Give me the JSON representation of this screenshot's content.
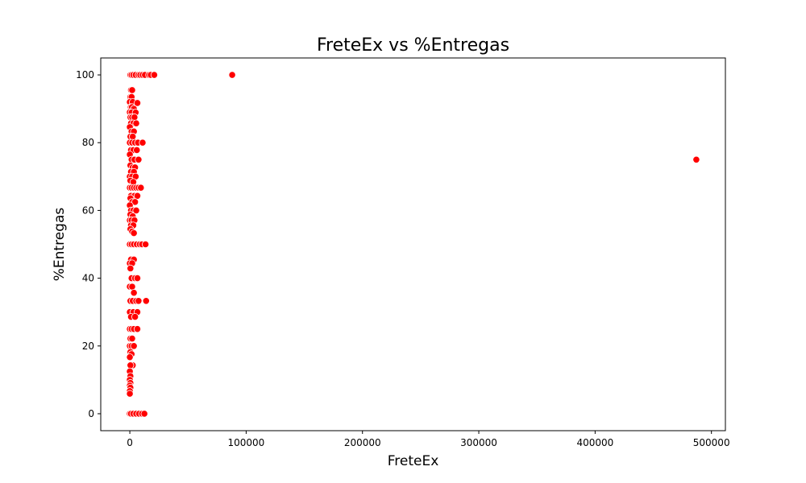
{
  "chart_data": {
    "type": "scatter",
    "title": "FreteEx vs %Entregas",
    "xlabel": "FreteEx",
    "ylabel": "%Entregas",
    "xlim": [
      -25000,
      512000
    ],
    "ylim": [
      -5,
      105
    ],
    "xticks": [
      0,
      100000,
      200000,
      300000,
      400000,
      500000
    ],
    "xtick_labels": [
      "0",
      "100000",
      "200000",
      "300000",
      "400000",
      "500000"
    ],
    "yticks": [
      0,
      20,
      40,
      60,
      80,
      100
    ],
    "ytick_labels": [
      "0",
      "20",
      "40",
      "60",
      "80",
      "100"
    ],
    "grid": false,
    "marker_color": "#ff0000",
    "marker_edge_color": "#ffffff",
    "series": [
      {
        "points": [
          [
            0,
            100
          ],
          [
            500,
            100
          ],
          [
            1500,
            100
          ],
          [
            3000,
            100
          ],
          [
            5000,
            100
          ],
          [
            7500,
            100
          ],
          [
            9000,
            100
          ],
          [
            11000,
            100
          ],
          [
            13000,
            100
          ],
          [
            16500,
            100
          ],
          [
            18000,
            100
          ],
          [
            21000,
            100
          ],
          [
            88000,
            100
          ],
          [
            487000,
            75
          ],
          [
            1000,
            95.5
          ],
          [
            2000,
            95.5
          ],
          [
            500,
            93.5
          ],
          [
            1500,
            93.5
          ],
          [
            0,
            92
          ],
          [
            2500,
            92
          ],
          [
            6500,
            91.7
          ],
          [
            800,
            90.5
          ],
          [
            1800,
            90.5
          ],
          [
            3500,
            90
          ],
          [
            0,
            89
          ],
          [
            1500,
            88.9
          ],
          [
            5000,
            88.9
          ],
          [
            500,
            87.5
          ],
          [
            2000,
            87.5
          ],
          [
            4000,
            87.5
          ],
          [
            1000,
            85.7
          ],
          [
            3000,
            85.7
          ],
          [
            5500,
            85.7
          ],
          [
            0,
            84.6
          ],
          [
            1500,
            83.3
          ],
          [
            3500,
            83.3
          ],
          [
            500,
            81.8
          ],
          [
            2500,
            81.8
          ],
          [
            0,
            80
          ],
          [
            2000,
            80
          ],
          [
            4500,
            80
          ],
          [
            7000,
            80
          ],
          [
            11000,
            80
          ],
          [
            1000,
            77.8
          ],
          [
            3000,
            77.8
          ],
          [
            6000,
            77.8
          ],
          [
            0,
            76.5
          ],
          [
            1500,
            75
          ],
          [
            4000,
            75
          ],
          [
            7500,
            75
          ],
          [
            500,
            73.3
          ],
          [
            2500,
            72.7
          ],
          [
            4500,
            72.7
          ],
          [
            1000,
            71.4
          ],
          [
            3500,
            71.4
          ],
          [
            0,
            70
          ],
          [
            2000,
            70
          ],
          [
            5000,
            70
          ],
          [
            500,
            68.8
          ],
          [
            3000,
            68.4
          ],
          [
            0,
            66.7
          ],
          [
            1500,
            66.7
          ],
          [
            3500,
            66.7
          ],
          [
            5500,
            66.7
          ],
          [
            7500,
            66.7
          ],
          [
            9500,
            66.7
          ],
          [
            1000,
            64.3
          ],
          [
            4000,
            64.3
          ],
          [
            6500,
            64.3
          ],
          [
            500,
            63.6
          ],
          [
            2000,
            62.5
          ],
          [
            4500,
            62.5
          ],
          [
            0,
            61.5
          ],
          [
            1000,
            60
          ],
          [
            3000,
            60
          ],
          [
            5500,
            60
          ],
          [
            500,
            58.8
          ],
          [
            2500,
            58.3
          ],
          [
            0,
            57.1
          ],
          [
            1500,
            57.1
          ],
          [
            4000,
            57.1
          ],
          [
            1000,
            55.6
          ],
          [
            3000,
            55.6
          ],
          [
            500,
            54.5
          ],
          [
            2000,
            53.8
          ],
          [
            3500,
            53.3
          ],
          [
            0,
            50
          ],
          [
            1500,
            50
          ],
          [
            3500,
            50
          ],
          [
            6000,
            50
          ],
          [
            8500,
            50
          ],
          [
            10500,
            50
          ],
          [
            13500,
            50
          ],
          [
            1000,
            45.5
          ],
          [
            3500,
            45.5
          ],
          [
            0,
            44.4
          ],
          [
            2000,
            44.4
          ],
          [
            500,
            42.9
          ],
          [
            1500,
            40
          ],
          [
            4500,
            40
          ],
          [
            6500,
            40
          ],
          [
            0,
            37.5
          ],
          [
            2000,
            37.5
          ],
          [
            3500,
            35.7
          ],
          [
            500,
            33.3
          ],
          [
            2500,
            33.3
          ],
          [
            5500,
            33.3
          ],
          [
            7500,
            33.3
          ],
          [
            14000,
            33.3
          ],
          [
            0,
            30
          ],
          [
            3000,
            30
          ],
          [
            6500,
            30
          ],
          [
            1000,
            28.6
          ],
          [
            4500,
            28.6
          ],
          [
            0,
            25
          ],
          [
            1500,
            25
          ],
          [
            3500,
            25
          ],
          [
            6500,
            25
          ],
          [
            500,
            22.2
          ],
          [
            2000,
            22.2
          ],
          [
            0,
            20
          ],
          [
            1500,
            20
          ],
          [
            3500,
            20
          ],
          [
            500,
            18.2
          ],
          [
            1500,
            17.6
          ],
          [
            0,
            16.7
          ],
          [
            2500,
            14.3
          ],
          [
            500,
            14.3
          ],
          [
            0,
            12.5
          ],
          [
            500,
            11.1
          ],
          [
            0,
            10
          ],
          [
            500,
            9.1
          ],
          [
            0,
            8.3
          ],
          [
            500,
            7.7
          ],
          [
            0,
            6.7
          ],
          [
            0,
            5.9
          ],
          [
            0,
            0
          ],
          [
            1000,
            0
          ],
          [
            3000,
            0
          ],
          [
            5500,
            0
          ],
          [
            8000,
            0
          ],
          [
            10500,
            0
          ],
          [
            12500,
            0
          ]
        ]
      }
    ]
  }
}
